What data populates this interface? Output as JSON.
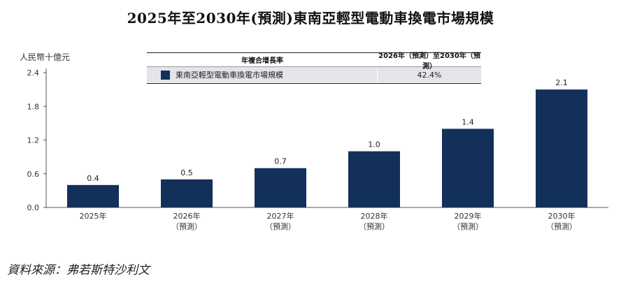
{
  "title": "2025年至2030年(預測)東南亞輕型電動車換電市場規模",
  "source": "資料來源：弗若斯特沙利文",
  "chart_data": {
    "type": "bar",
    "ylabel": "人民幣十億元",
    "ylim": [
      0,
      2.4
    ],
    "yticks": [
      "0.0",
      "0.6",
      "1.2",
      "1.8",
      "2.4"
    ],
    "categories": [
      {
        "line1": "2025年",
        "line2": ""
      },
      {
        "line1": "2026年",
        "line2": "（預測）"
      },
      {
        "line1": "2027年",
        "line2": "（預測）"
      },
      {
        "line1": "2028年",
        "line2": "（預測）"
      },
      {
        "line1": "2029年",
        "line2": "（預測）"
      },
      {
        "line1": "2030年",
        "line2": "（預測）"
      }
    ],
    "series": [
      {
        "name": "東南亞輕型電動車換電市場規模",
        "values": [
          0.4,
          0.5,
          0.7,
          1.0,
          1.4,
          2.1
        ],
        "labels": [
          "0.4",
          "0.5",
          "0.7",
          "1.0",
          "1.4",
          "2.1"
        ],
        "color": "#13305a"
      }
    ],
    "cagr_table": {
      "header_label": "年複合增長率",
      "header_period": "2026年（預測）至2030年（預測）",
      "row_value": "42.4%"
    },
    "grid": false
  }
}
